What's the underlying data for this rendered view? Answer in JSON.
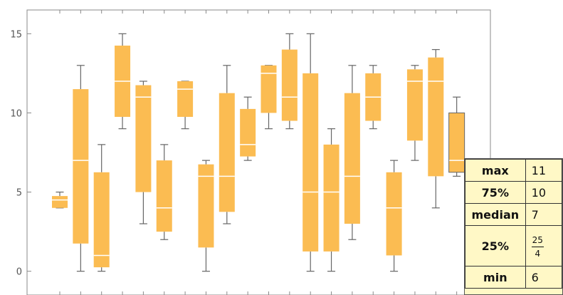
{
  "chart_data": {
    "type": "box",
    "title": "",
    "xlabel": "",
    "ylabel": "",
    "ylim": [
      -1.5,
      16.5
    ],
    "yticks": [
      0,
      5,
      10,
      15
    ],
    "ytick_labels": [
      "0",
      "5",
      "10",
      "15"
    ],
    "grid": false,
    "legend": "none",
    "box_color": "#fbbc52",
    "whisker_color": "#666666",
    "boxes": [
      {
        "min": 4,
        "q1": 4,
        "median": 4.5,
        "q3": 4.75,
        "max": 5
      },
      {
        "min": 0,
        "q1": 1.75,
        "median": 7,
        "q3": 11.5,
        "max": 13
      },
      {
        "min": 0,
        "q1": 0.25,
        "median": 1,
        "q3": 6.25,
        "max": 8
      },
      {
        "min": 9,
        "q1": 9.75,
        "median": 12,
        "q3": 14.25,
        "max": 15
      },
      {
        "min": 3,
        "q1": 5,
        "median": 11,
        "q3": 11.75,
        "max": 12
      },
      {
        "min": 2,
        "q1": 2.5,
        "median": 4,
        "q3": 7,
        "max": 8
      },
      {
        "min": 9,
        "q1": 9.75,
        "median": 11.5,
        "q3": 12,
        "max": 12
      },
      {
        "min": 0,
        "q1": 1.5,
        "median": 6,
        "q3": 6.75,
        "max": 7
      },
      {
        "min": 3,
        "q1": 3.75,
        "median": 6,
        "q3": 11.25,
        "max": 13
      },
      {
        "min": 7,
        "q1": 7.25,
        "median": 8,
        "q3": 10.25,
        "max": 11
      },
      {
        "min": 9,
        "q1": 10,
        "median": 12.5,
        "q3": 13,
        "max": 13
      },
      {
        "min": 9,
        "q1": 9.5,
        "median": 11,
        "q3": 14,
        "max": 15
      },
      {
        "min": 0,
        "q1": 1.25,
        "median": 5,
        "q3": 12.5,
        "max": 15
      },
      {
        "min": 0,
        "q1": 1.25,
        "median": 5,
        "q3": 8,
        "max": 9
      },
      {
        "min": 2,
        "q1": 3,
        "median": 6,
        "q3": 11.25,
        "max": 13
      },
      {
        "min": 9,
        "q1": 9.5,
        "median": 11,
        "q3": 12.5,
        "max": 13
      },
      {
        "min": 0,
        "q1": 1,
        "median": 4,
        "q3": 6.25,
        "max": 7
      },
      {
        "min": 7,
        "q1": 8.25,
        "median": 12,
        "q3": 12.75,
        "max": 13
      },
      {
        "min": 4,
        "q1": 6,
        "median": 12,
        "q3": 13.5,
        "max": 14
      },
      {
        "min": 6,
        "q1": 6.25,
        "median": 7,
        "q3": 10,
        "max": 11
      }
    ],
    "tooltip": {
      "rows": [
        {
          "label": "max",
          "value": "11"
        },
        {
          "label": "75%",
          "value": "10"
        },
        {
          "label": "median",
          "value": "7"
        },
        {
          "label": "25%",
          "value_num": "25",
          "value_den": "4"
        },
        {
          "label": "min",
          "value": "6"
        }
      ]
    }
  }
}
